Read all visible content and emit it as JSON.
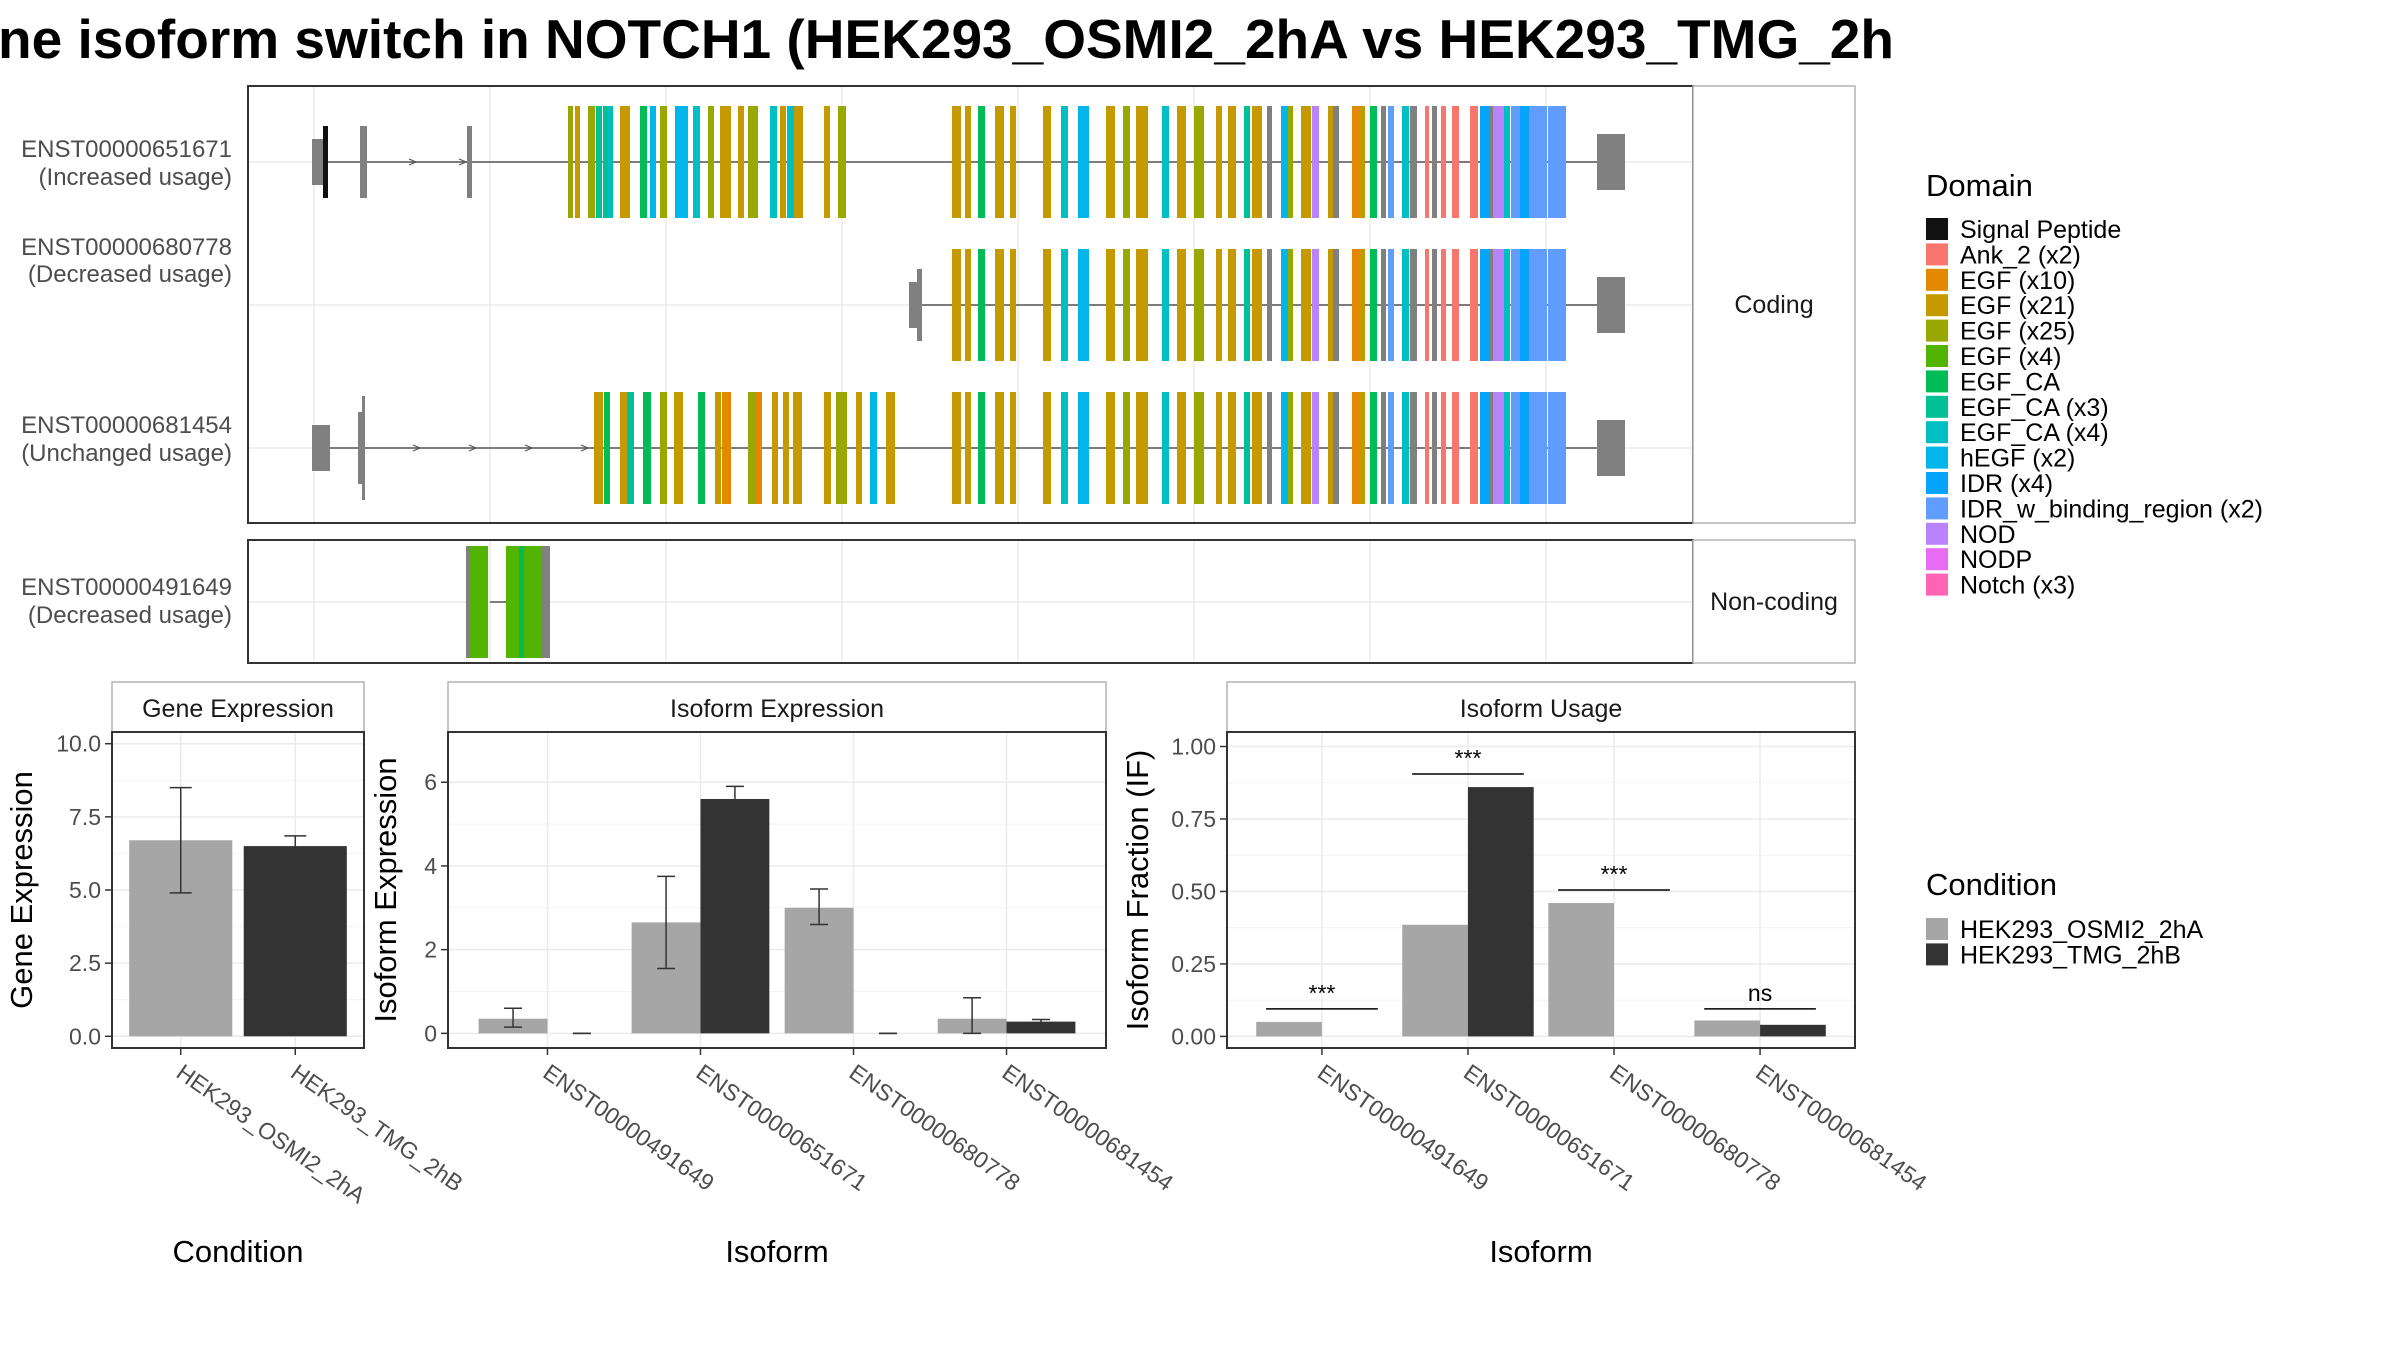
{
  "title": "ne isoform switch in NOTCH1 (HEK293_OSMI2_2hA vs HEK293_TMG_2h",
  "colors": {
    "intron": "#555555",
    "exon_uncoded": "#808080",
    "cond_a": "#a6a6a6",
    "cond_b": "#333333",
    "panel_border": "#333333",
    "grid": "#ebebeb",
    "strip_border": "#b3b3b3"
  },
  "domain_legend": {
    "title": "Domain",
    "items": [
      {
        "label": "Signal Peptide",
        "color": "#111111"
      },
      {
        "label": "Ank_2 (x2)",
        "color": "#F8766D"
      },
      {
        "label": "EGF (x10)",
        "color": "#E38900"
      },
      {
        "label": "EGF (x21)",
        "color": "#C49A00"
      },
      {
        "label": "EGF (x25)",
        "color": "#99A800"
      },
      {
        "label": "EGF (x4)",
        "color": "#53B400"
      },
      {
        "label": "EGF_CA",
        "color": "#00BC56"
      },
      {
        "label": "EGF_CA (x3)",
        "color": "#00C094"
      },
      {
        "label": "EGF_CA (x4)",
        "color": "#00BFC4"
      },
      {
        "label": "hEGF (x2)",
        "color": "#00B6EB"
      },
      {
        "label": "IDR (x4)",
        "color": "#06A4FF"
      },
      {
        "label": "IDR_w_binding_region (x2)",
        "color": "#619CFF"
      },
      {
        "label": "NOD",
        "color": "#B983FF"
      },
      {
        "label": "NODP",
        "color": "#E76BF3"
      },
      {
        "label": "Notch (x3)",
        "color": "#FF63B6"
      }
    ]
  },
  "condition_legend": {
    "title": "Condition",
    "items": [
      {
        "label": "HEK293_OSMI2_2hA",
        "color": "#a6a6a6"
      },
      {
        "label": "HEK293_TMG_2hB",
        "color": "#333333"
      }
    ]
  },
  "structure": {
    "coding_label": "Coding",
    "noncoding_label": "Non-coding",
    "transcripts": [
      {
        "id": "ENST00000651671",
        "usage": "(Increased usage)",
        "group": "Coding"
      },
      {
        "id": "ENST00000680778",
        "usage": "(Decreased usage)",
        "group": "Coding"
      },
      {
        "id": "ENST00000681454",
        "usage": "(Unchanged usage)",
        "group": "Coding"
      },
      {
        "id": "ENST00000491649",
        "usage": "(Decreased usage)",
        "group": "Non-coding"
      }
    ]
  },
  "chart_data": [
    {
      "type": "bar",
      "title": "Gene Expression",
      "xlabel": "Condition",
      "ylabel": "Gene Expression",
      "categories": [
        "HEK293_OSMI2_2hA",
        "HEK293_TMG_2hB"
      ],
      "values": [
        6.7,
        6.5
      ],
      "error_low": [
        4.9,
        6.2
      ],
      "error_high": [
        8.5,
        6.85
      ],
      "ylim": [
        -0.4,
        10.4
      ],
      "yticks": [
        0.0,
        2.5,
        5.0,
        7.5,
        10.0
      ],
      "ytick_labels": [
        "0.0",
        "2.5",
        "5.0",
        "7.5",
        "10.0"
      ]
    },
    {
      "type": "bar",
      "title": "Isoform Expression",
      "xlabel": "Isoform",
      "ylabel": "Isoform Expression",
      "categories": [
        "ENST00000491649",
        "ENST00000651671",
        "ENST00000680778",
        "ENST00000681454"
      ],
      "series": [
        {
          "name": "HEK293_OSMI2_2hA",
          "values": [
            0.35,
            2.65,
            3.0,
            0.35
          ],
          "error_low": [
            0.15,
            1.55,
            2.6,
            0.0
          ],
          "error_high": [
            0.6,
            3.75,
            3.45,
            0.85
          ]
        },
        {
          "name": "HEK293_TMG_2hB",
          "values": [
            0.0,
            5.6,
            0.0,
            0.28
          ],
          "error_low": [
            0.0,
            5.3,
            0.0,
            0.22
          ],
          "error_high": [
            0.0,
            5.9,
            0.0,
            0.33
          ]
        }
      ],
      "ylim": [
        -0.35,
        7.2
      ],
      "yticks": [
        0,
        2,
        4,
        6
      ],
      "ytick_labels": [
        "0",
        "2",
        "4",
        "6"
      ]
    },
    {
      "type": "bar",
      "title": "Isoform Usage",
      "xlabel": "Isoform",
      "ylabel": "Isoform Fraction (IF)",
      "categories": [
        "ENST00000491649",
        "ENST00000651671",
        "ENST00000680778",
        "ENST00000681454"
      ],
      "series": [
        {
          "name": "HEK293_OSMI2_2hA",
          "values": [
            0.05,
            0.385,
            0.46,
            0.055
          ]
        },
        {
          "name": "HEK293_TMG_2hB",
          "values": [
            0.0,
            0.86,
            0.0,
            0.04
          ]
        }
      ],
      "significance": [
        {
          "label": "***",
          "y": 0.095
        },
        {
          "label": "***",
          "y": 0.905
        },
        {
          "label": "***",
          "y": 0.505
        },
        {
          "label": "ns",
          "y": 0.095
        }
      ],
      "ylim": [
        -0.04,
        1.05
      ],
      "yticks": [
        0.0,
        0.25,
        0.5,
        0.75,
        1.0
      ],
      "ytick_labels": [
        "0.00",
        "0.25",
        "0.50",
        "0.75",
        "1.00"
      ]
    }
  ]
}
